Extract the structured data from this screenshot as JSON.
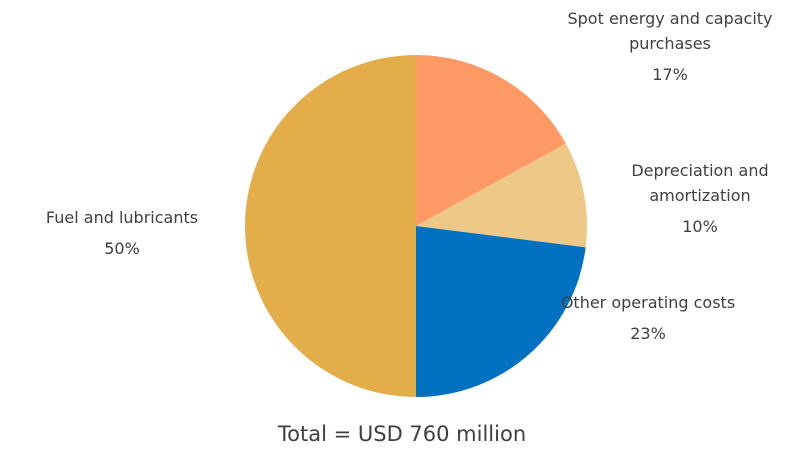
{
  "chart_data": {
    "type": "pie",
    "categories": [
      "Fuel and lubricants",
      "Spot energy and capacity purchases",
      "Depreciation and amortization",
      "Other operating costs"
    ],
    "values": [
      50,
      17,
      10,
      23
    ],
    "value_labels": [
      "50%",
      "17%",
      "10%",
      "23%"
    ],
    "colors": [
      "#e3ae4a",
      "#fd9965",
      "#edc887",
      "#0070c0"
    ],
    "annotation": "Total = USD 760 million"
  }
}
